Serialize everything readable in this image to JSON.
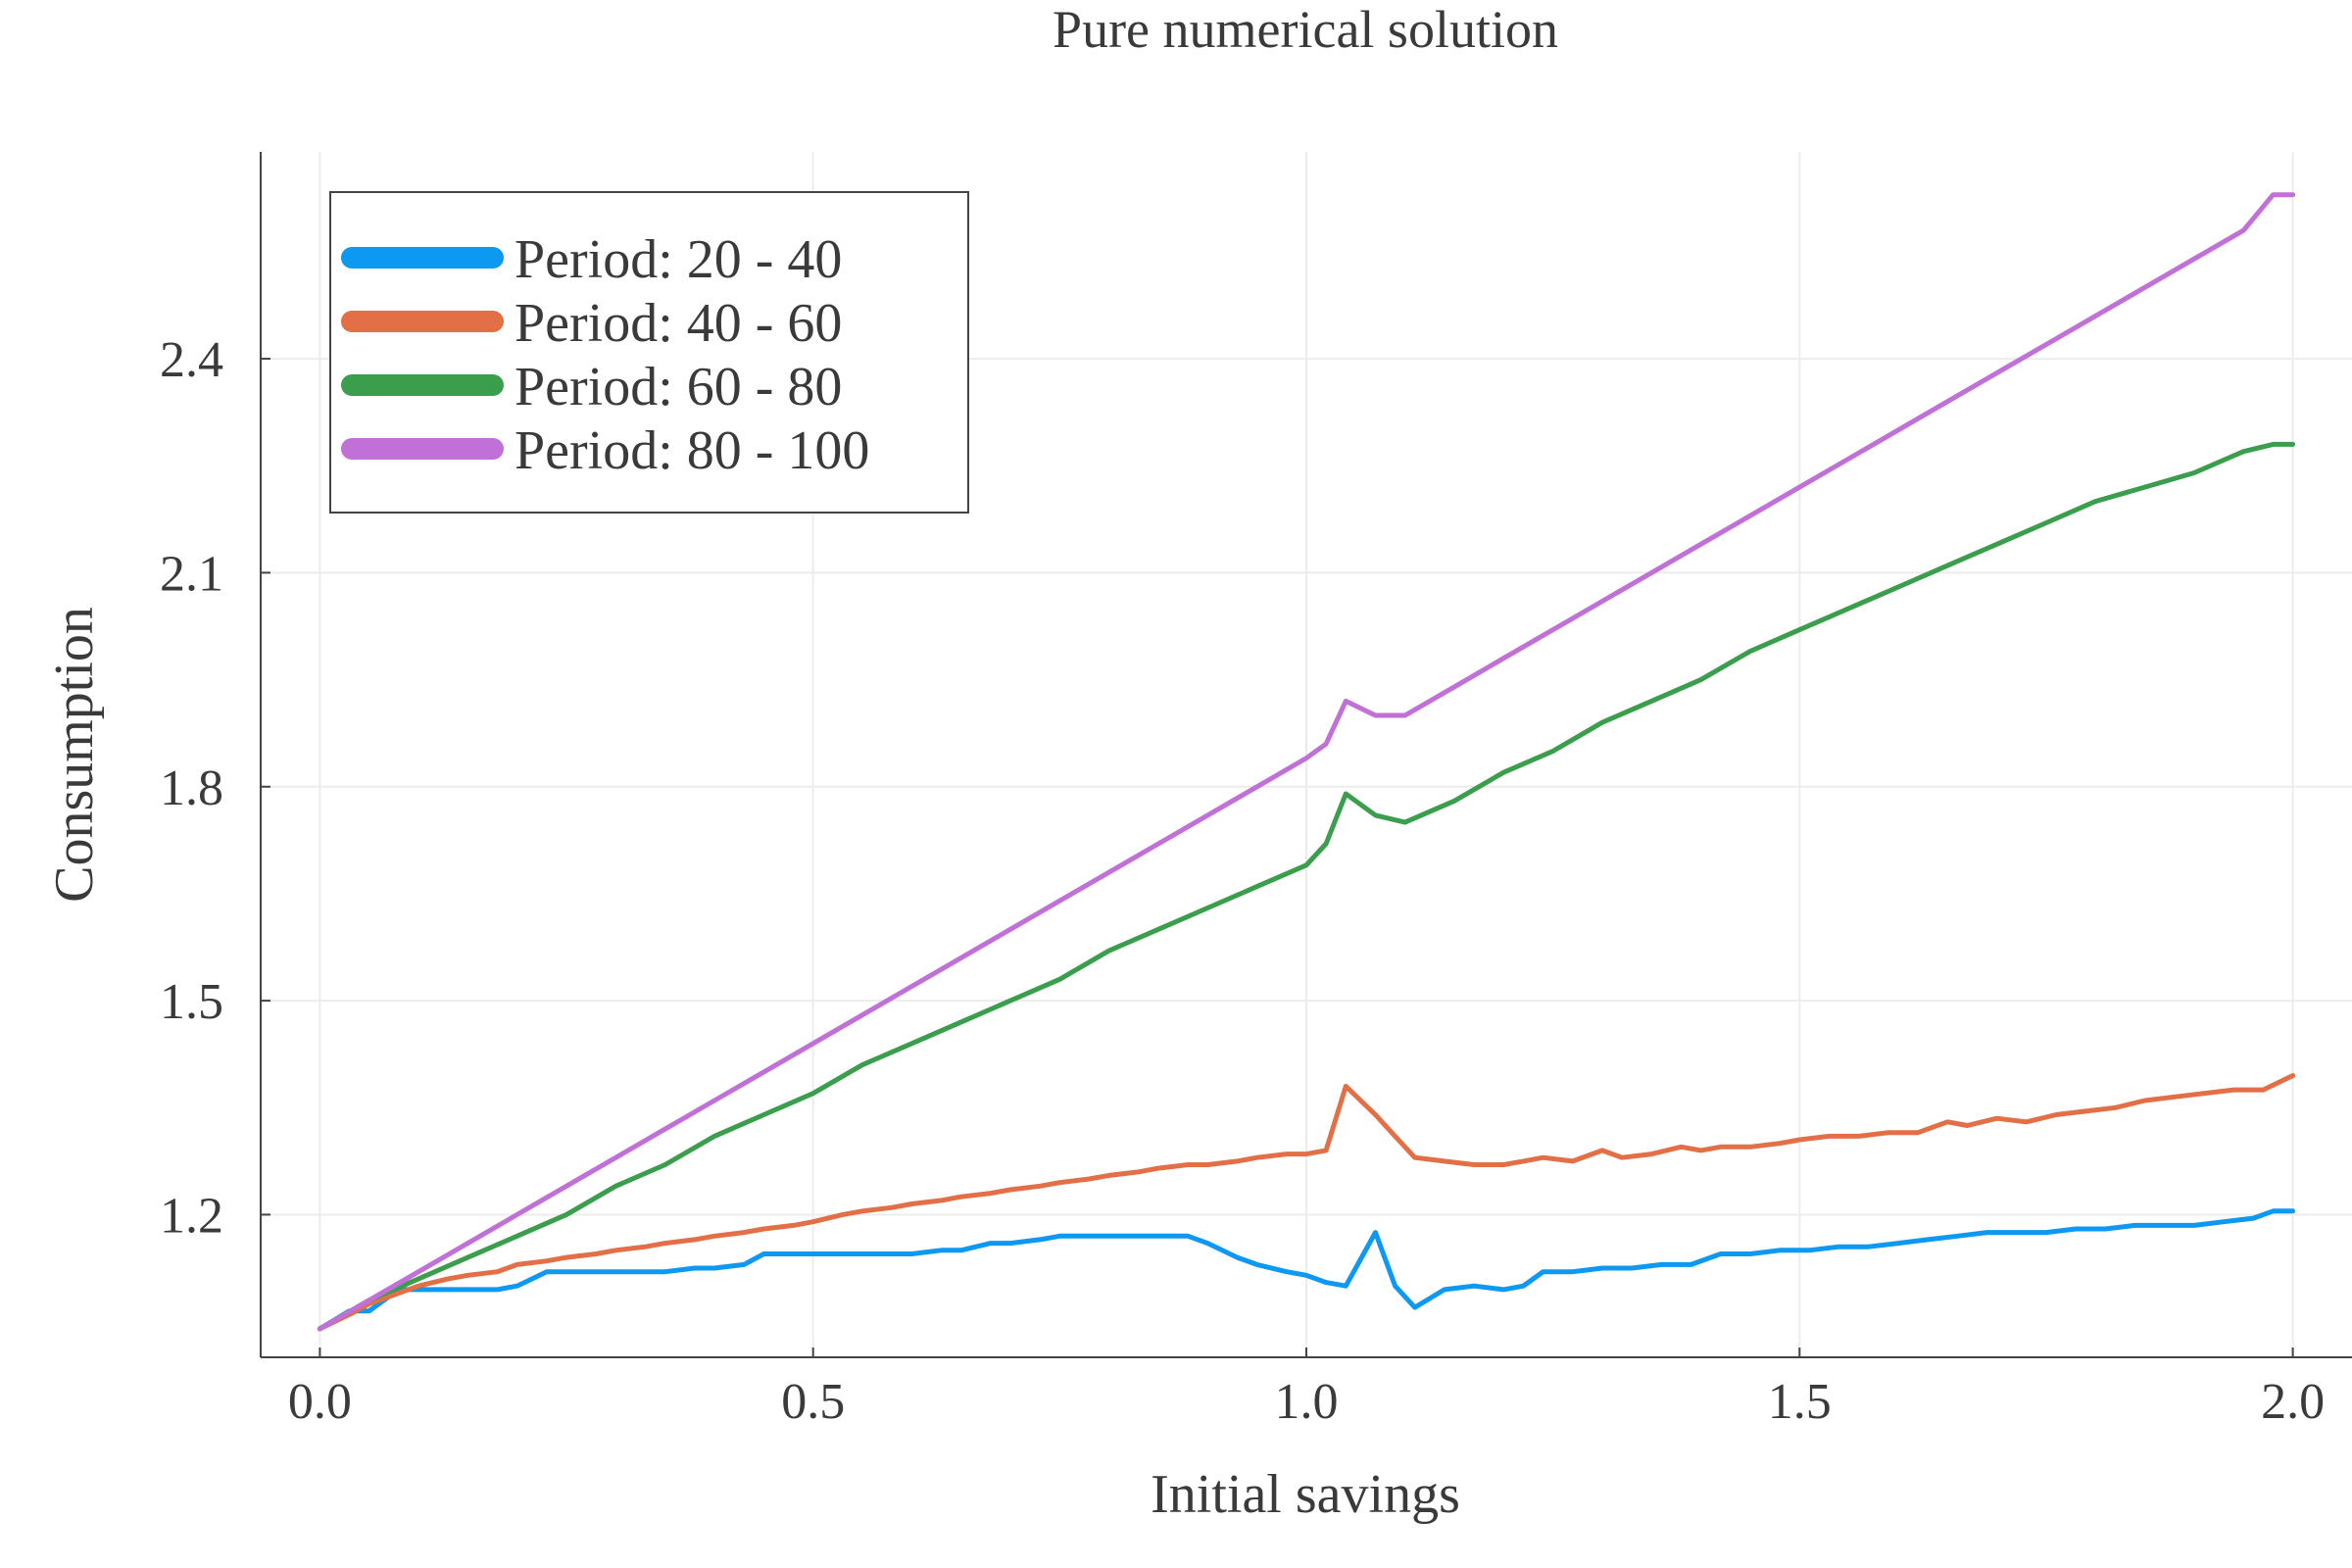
{
  "chart_data": {
    "type": "line",
    "title": "Pure numerical solution",
    "xlabel": "Initial savings",
    "ylabel": "Consumption",
    "xlim": [
      -0.06,
      2.06
    ],
    "ylim": [
      1.0,
      2.69
    ],
    "xticks": [
      0.0,
      0.5,
      1.0,
      1.5,
      2.0
    ],
    "xtick_labels": [
      "0.0",
      "0.5",
      "1.0",
      "1.5",
      "2.0"
    ],
    "yticks": [
      1.2,
      1.5,
      1.8,
      2.1,
      2.4
    ],
    "ytick_labels": [
      "1.2",
      "1.5",
      "1.8",
      "2.1",
      "2.4"
    ],
    "grid": true,
    "legend": "top-left",
    "series": [
      {
        "name": "Period: 20 - 40",
        "color": "#0d98f2",
        "x": [
          0.0,
          0.03,
          0.05,
          0.08,
          0.1,
          0.15,
          0.18,
          0.2,
          0.23,
          0.25,
          0.3,
          0.35,
          0.38,
          0.4,
          0.43,
          0.45,
          0.5,
          0.55,
          0.6,
          0.63,
          0.65,
          0.68,
          0.7,
          0.73,
          0.75,
          0.8,
          0.85,
          0.88,
          0.9,
          0.93,
          0.95,
          0.98,
          1.0,
          1.02,
          1.04,
          1.07,
          1.09,
          1.11,
          1.14,
          1.17,
          1.2,
          1.22,
          1.24,
          1.27,
          1.3,
          1.33,
          1.36,
          1.39,
          1.42,
          1.45,
          1.48,
          1.51,
          1.54,
          1.57,
          1.6,
          1.63,
          1.66,
          1.69,
          1.72,
          1.75,
          1.78,
          1.81,
          1.84,
          1.87,
          1.9,
          1.93,
          1.96,
          1.98,
          2.0
        ],
        "values": [
          1.04,
          1.065,
          1.065,
          1.095,
          1.095,
          1.095,
          1.095,
          1.1,
          1.12,
          1.12,
          1.12,
          1.12,
          1.125,
          1.125,
          1.13,
          1.145,
          1.145,
          1.145,
          1.145,
          1.15,
          1.15,
          1.16,
          1.16,
          1.165,
          1.17,
          1.17,
          1.17,
          1.17,
          1.16,
          1.14,
          1.13,
          1.12,
          1.115,
          1.105,
          1.1,
          1.175,
          1.1,
          1.07,
          1.095,
          1.1,
          1.095,
          1.1,
          1.12,
          1.12,
          1.125,
          1.125,
          1.13,
          1.13,
          1.145,
          1.145,
          1.15,
          1.15,
          1.155,
          1.155,
          1.16,
          1.165,
          1.17,
          1.175,
          1.175,
          1.175,
          1.18,
          1.18,
          1.185,
          1.185,
          1.185,
          1.19,
          1.195,
          1.205,
          1.205
        ]
      },
      {
        "name": "Period: 40 - 60",
        "color": "#e26f46",
        "x": [
          0.0,
          0.03,
          0.05,
          0.08,
          0.1,
          0.13,
          0.15,
          0.18,
          0.2,
          0.23,
          0.25,
          0.28,
          0.3,
          0.33,
          0.35,
          0.38,
          0.4,
          0.43,
          0.45,
          0.48,
          0.5,
          0.53,
          0.55,
          0.58,
          0.6,
          0.63,
          0.65,
          0.68,
          0.7,
          0.73,
          0.75,
          0.78,
          0.8,
          0.83,
          0.85,
          0.88,
          0.9,
          0.93,
          0.95,
          0.98,
          1.0,
          1.02,
          1.04,
          1.07,
          1.09,
          1.11,
          1.14,
          1.17,
          1.2,
          1.22,
          1.24,
          1.27,
          1.3,
          1.32,
          1.35,
          1.38,
          1.4,
          1.42,
          1.45,
          1.48,
          1.5,
          1.53,
          1.56,
          1.59,
          1.62,
          1.65,
          1.67,
          1.7,
          1.73,
          1.76,
          1.79,
          1.82,
          1.85,
          1.88,
          1.91,
          1.94,
          1.97,
          2.0
        ],
        "values": [
          1.04,
          1.06,
          1.075,
          1.09,
          1.1,
          1.11,
          1.115,
          1.12,
          1.13,
          1.135,
          1.14,
          1.145,
          1.15,
          1.155,
          1.16,
          1.165,
          1.17,
          1.175,
          1.18,
          1.185,
          1.19,
          1.2,
          1.205,
          1.21,
          1.215,
          1.22,
          1.225,
          1.23,
          1.235,
          1.24,
          1.245,
          1.25,
          1.255,
          1.26,
          1.265,
          1.27,
          1.27,
          1.275,
          1.28,
          1.285,
          1.285,
          1.29,
          1.38,
          1.34,
          1.31,
          1.28,
          1.275,
          1.27,
          1.27,
          1.275,
          1.28,
          1.275,
          1.29,
          1.28,
          1.285,
          1.295,
          1.29,
          1.295,
          1.295,
          1.3,
          1.305,
          1.31,
          1.31,
          1.315,
          1.315,
          1.33,
          1.325,
          1.335,
          1.33,
          1.34,
          1.345,
          1.35,
          1.36,
          1.365,
          1.37,
          1.375,
          1.375,
          1.395
        ]
      },
      {
        "name": "Period: 60 - 80",
        "color": "#3a9e4c",
        "x": [
          0.0,
          0.05,
          0.1,
          0.15,
          0.2,
          0.25,
          0.3,
          0.35,
          0.4,
          0.45,
          0.5,
          0.55,
          0.6,
          0.65,
          0.7,
          0.75,
          0.8,
          0.85,
          0.9,
          0.95,
          1.0,
          1.02,
          1.04,
          1.07,
          1.1,
          1.15,
          1.2,
          1.25,
          1.3,
          1.35,
          1.4,
          1.45,
          1.5,
          1.55,
          1.6,
          1.65,
          1.7,
          1.75,
          1.8,
          1.85,
          1.9,
          1.95,
          1.98,
          2.0
        ],
        "values": [
          1.04,
          1.08,
          1.11,
          1.14,
          1.17,
          1.2,
          1.24,
          1.27,
          1.31,
          1.34,
          1.37,
          1.41,
          1.44,
          1.47,
          1.5,
          1.53,
          1.57,
          1.6,
          1.63,
          1.66,
          1.69,
          1.72,
          1.79,
          1.76,
          1.75,
          1.78,
          1.82,
          1.85,
          1.89,
          1.92,
          1.95,
          1.99,
          2.02,
          2.05,
          2.08,
          2.11,
          2.14,
          2.17,
          2.2,
          2.22,
          2.24,
          2.27,
          2.28,
          2.28
        ]
      },
      {
        "name": "Period: 80 - 100",
        "color": "#c170d8",
        "x": [
          0.0,
          0.05,
          0.1,
          0.15,
          0.2,
          0.25,
          0.3,
          0.35,
          0.4,
          0.45,
          0.5,
          0.55,
          0.6,
          0.65,
          0.7,
          0.75,
          0.8,
          0.85,
          0.9,
          0.95,
          1.0,
          1.02,
          1.04,
          1.07,
          1.1,
          1.15,
          1.2,
          1.25,
          1.3,
          1.35,
          1.4,
          1.45,
          1.5,
          1.55,
          1.6,
          1.65,
          1.7,
          1.75,
          1.8,
          1.85,
          1.9,
          1.95,
          1.98,
          2.0
        ],
        "values": [
          1.04,
          1.08,
          1.12,
          1.16,
          1.2,
          1.24,
          1.28,
          1.32,
          1.36,
          1.4,
          1.44,
          1.48,
          1.52,
          1.56,
          1.6,
          1.64,
          1.68,
          1.72,
          1.76,
          1.8,
          1.84,
          1.86,
          1.92,
          1.9,
          1.9,
          1.94,
          1.98,
          2.02,
          2.06,
          2.1,
          2.14,
          2.18,
          2.22,
          2.26,
          2.3,
          2.34,
          2.38,
          2.42,
          2.46,
          2.5,
          2.54,
          2.58,
          2.63,
          2.63
        ]
      }
    ]
  }
}
